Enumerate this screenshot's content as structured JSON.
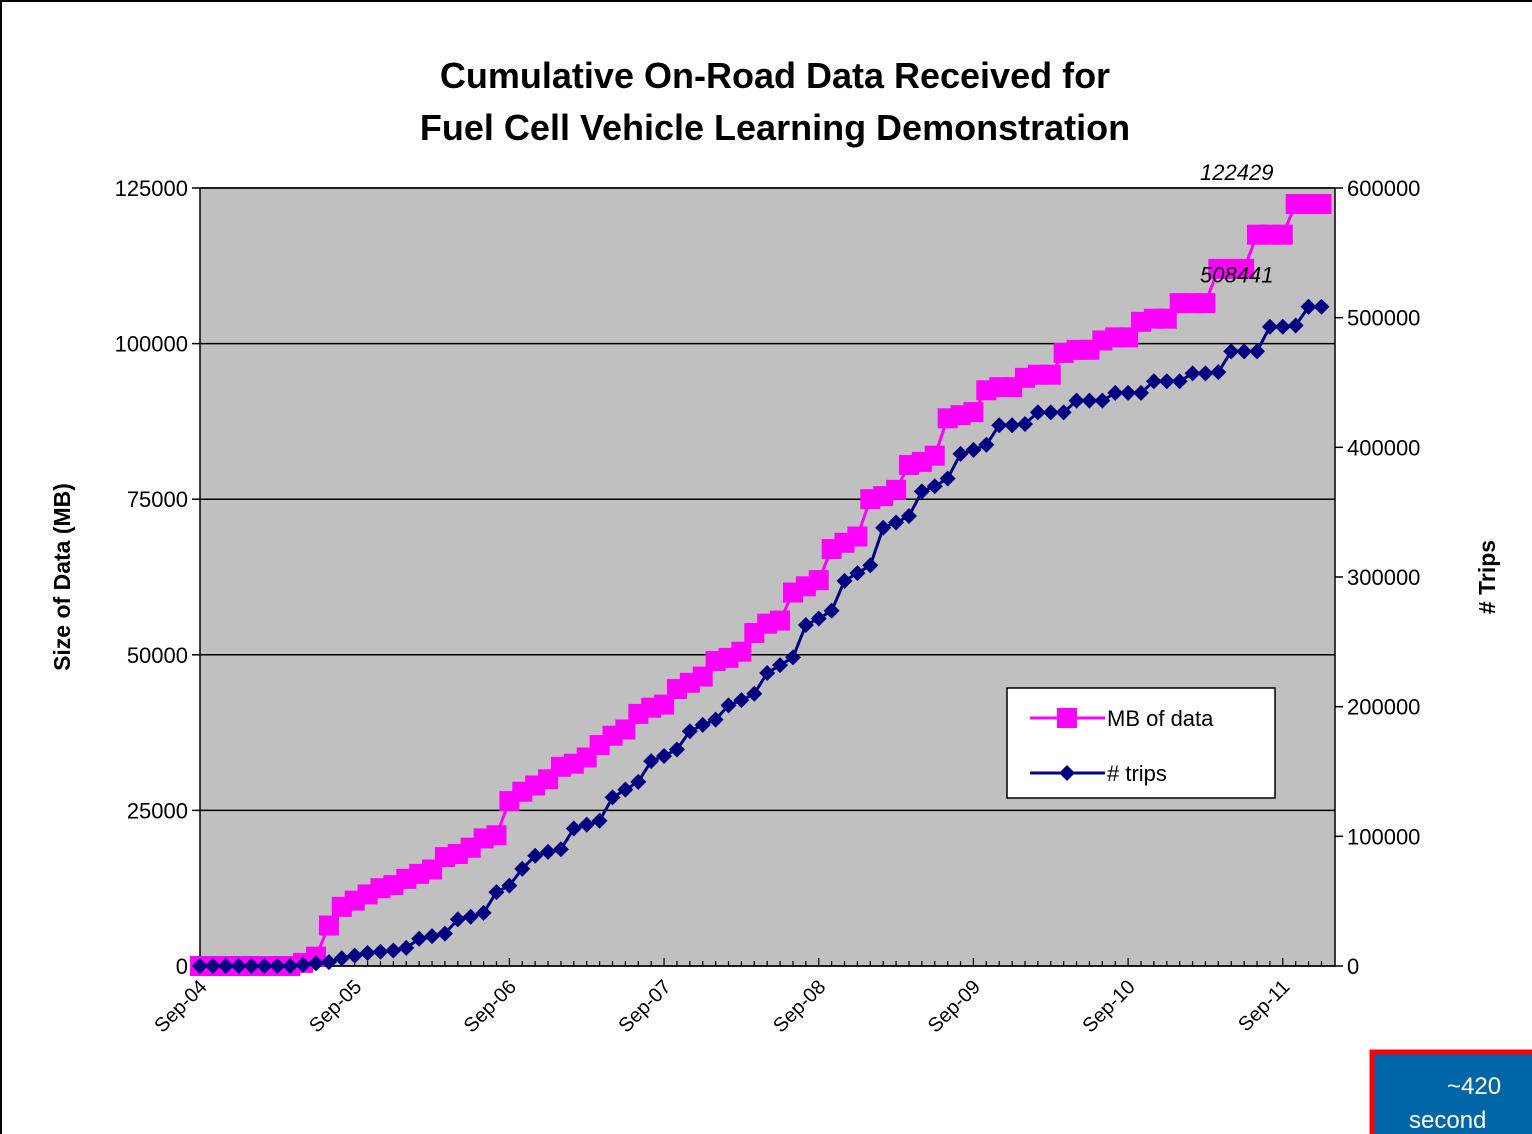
{
  "chart_data": {
    "type": "line",
    "title": [
      "Cumulative On-Road Data Received for",
      "Fuel Cell Vehicle Learning Demonstration"
    ],
    "ylabel": "Size of Data (MB)",
    "y2label": "# Trips",
    "categories": [
      "Sep-04",
      null,
      null,
      null,
      null,
      null,
      null,
      null,
      null,
      null,
      null,
      null,
      "Sep-05",
      null,
      null,
      null,
      null,
      null,
      null,
      null,
      null,
      null,
      null,
      null,
      "Sep-06",
      null,
      null,
      null,
      null,
      null,
      null,
      null,
      null,
      null,
      null,
      null,
      "Sep-07",
      null,
      null,
      null,
      null,
      null,
      null,
      null,
      null,
      null,
      null,
      null,
      "Sep-08",
      null,
      null,
      null,
      null,
      null,
      null,
      null,
      null,
      null,
      null,
      null,
      "Sep-09",
      null,
      null,
      null,
      null,
      null,
      null,
      null,
      null,
      null,
      null,
      null,
      "Sep-10",
      null,
      null,
      null,
      null,
      null,
      null,
      null,
      null,
      null,
      null,
      null,
      "Sep-11",
      null,
      null,
      null
    ],
    "series": [
      {
        "name": "MB of data",
        "color": "#ff00ff",
        "marker": "square",
        "axis": "y",
        "values": [
          0,
          0,
          0,
          0,
          0,
          0,
          0,
          0,
          500,
          1500,
          6500,
          9500,
          10500,
          11500,
          12500,
          13000,
          14000,
          14800,
          15500,
          17500,
          18000,
          19000,
          20500,
          21000,
          26500,
          28000,
          29000,
          30000,
          32000,
          32500,
          33500,
          35500,
          37000,
          38000,
          40500,
          41500,
          42000,
          44500,
          45500,
          46500,
          49000,
          49500,
          50500,
          53500,
          55000,
          55500,
          60000,
          61000,
          62000,
          67000,
          68000,
          69000,
          75000,
          75500,
          76500,
          80500,
          81000,
          82000,
          88000,
          88500,
          89000,
          92500,
          93000,
          93000,
          94500,
          95000,
          95000,
          98500,
          99000,
          99000,
          100500,
          101000,
          101000,
          103500,
          104000,
          104000,
          106500,
          106500,
          106500,
          112000,
          112000,
          112000,
          117500,
          117500,
          117500,
          122429,
          122429,
          122429
        ]
      },
      {
        "name": "# trips",
        "color": "#000080",
        "marker": "diamond",
        "axis": "y2",
        "values": [
          0,
          0,
          0,
          0,
          0,
          0,
          0,
          0,
          1000,
          2000,
          3000,
          6000,
          8000,
          10000,
          11000,
          12000,
          14000,
          21000,
          23000,
          25000,
          36000,
          38000,
          41000,
          57000,
          62000,
          75000,
          85000,
          88000,
          90000,
          106000,
          109000,
          112000,
          130000,
          136000,
          142000,
          158000,
          162000,
          167000,
          181000,
          186000,
          190000,
          201000,
          205000,
          210000,
          226000,
          232000,
          238000,
          263000,
          268000,
          274000,
          297000,
          303000,
          309000,
          338000,
          342000,
          347000,
          366000,
          370000,
          376000,
          395000,
          398000,
          402000,
          417000,
          417000,
          418000,
          427000,
          427000,
          427000,
          436000,
          436000,
          436000,
          442000,
          442000,
          442000,
          451000,
          451000,
          451000,
          457000,
          457000,
          458000,
          474000,
          474000,
          474000,
          493000,
          493000,
          494000,
          508441,
          508441
        ]
      }
    ],
    "ylim": [
      0,
      125000
    ],
    "yticks": [
      0,
      25000,
      50000,
      75000,
      100000,
      125000
    ],
    "y2lim": [
      0,
      600000
    ],
    "y2ticks": [
      0,
      100000,
      200000,
      300000,
      400000,
      500000,
      600000
    ],
    "grid": true,
    "plot_background": "#c0c0c0",
    "note_box": {
      "lines": [
        "~420",
        "second"
      ],
      "color": "#0066a8",
      "border": "#ff0000"
    }
  }
}
